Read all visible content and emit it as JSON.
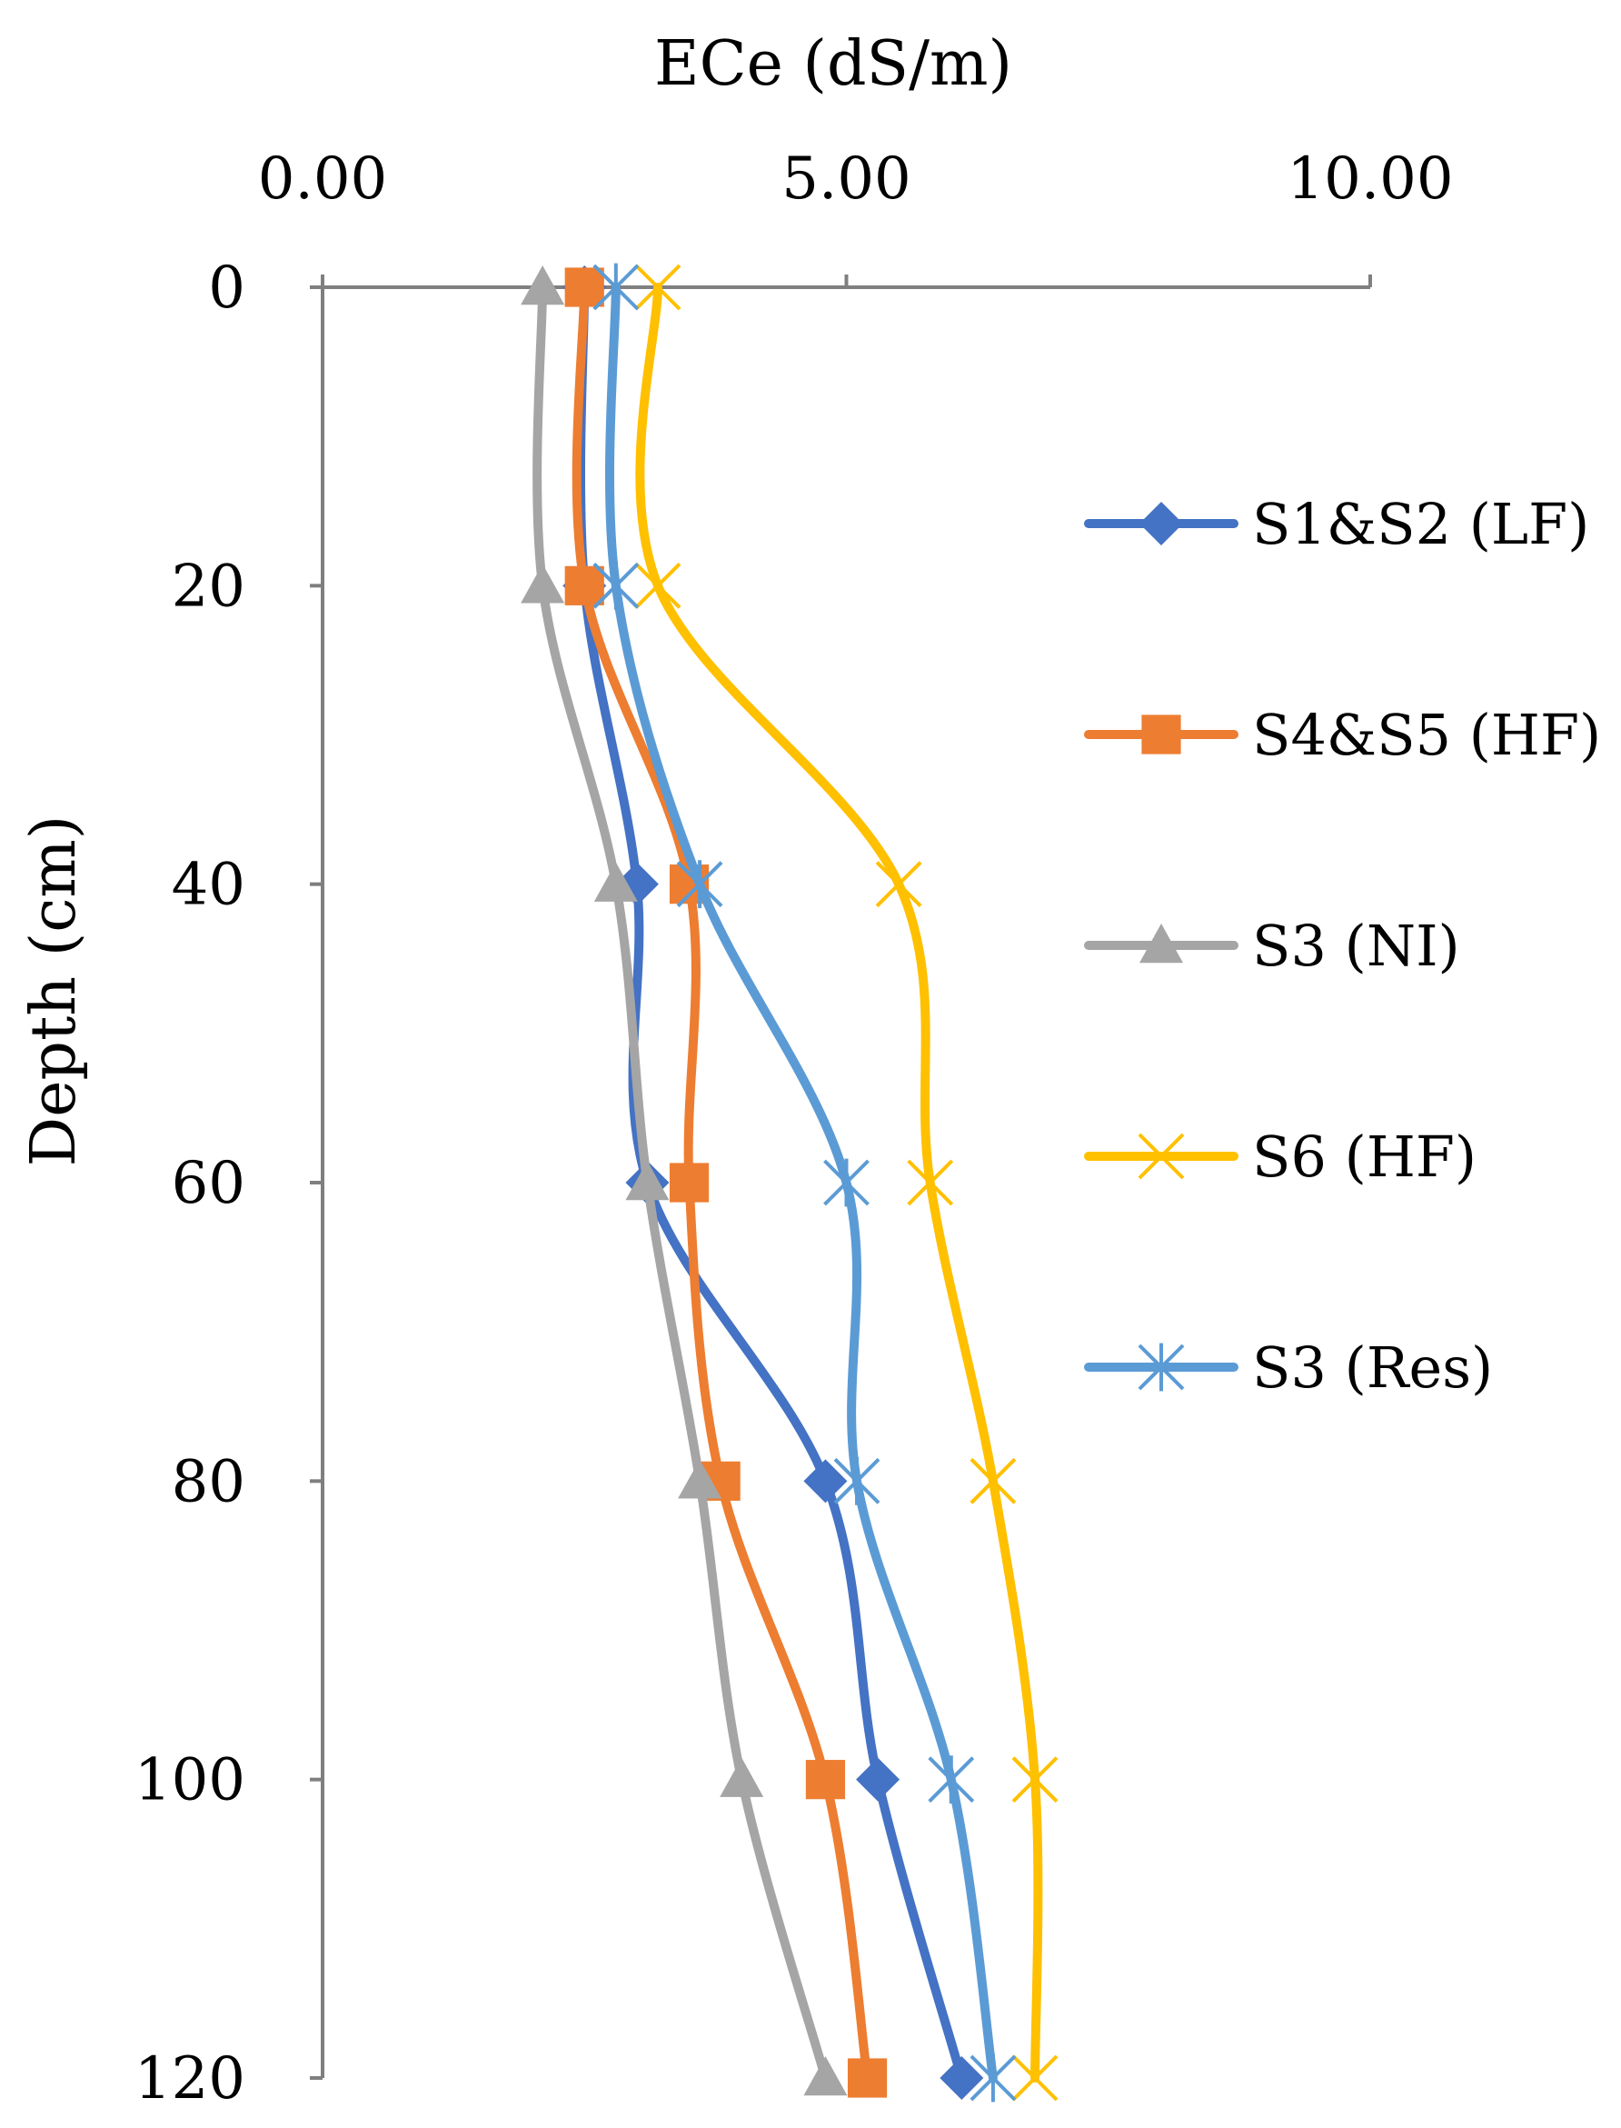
{
  "chart_data": {
    "type": "line",
    "title": "",
    "xlabel": "ECe (dS/m)",
    "ylabel": "Depth (cm)",
    "x_axis_position": "top",
    "y_axis_reversed": true,
    "xlim": [
      0,
      10
    ],
    "ylim": [
      0,
      120
    ],
    "x_ticks": [
      "0.00",
      "5.00",
      "10.00"
    ],
    "y_ticks": [
      "0",
      "20",
      "40",
      "60",
      "80",
      "100",
      "120"
    ],
    "grid": false,
    "smooth_lines": true,
    "legend_position": "right",
    "depth": [
      0,
      20,
      40,
      60,
      80,
      100,
      120
    ],
    "series": [
      {
        "name": "S1&S2 (LF)",
        "color": "#4472C4",
        "marker": "diamond",
        "values": [
          2.5,
          2.5,
          3.0,
          3.1,
          4.8,
          5.3,
          6.1
        ]
      },
      {
        "name": "S4&S5 (HF)",
        "color": "#ED7D31",
        "marker": "square",
        "values": [
          2.5,
          2.5,
          3.5,
          3.5,
          3.8,
          4.8,
          5.2
        ]
      },
      {
        "name": "S3 (NI)",
        "color": "#A5A5A5",
        "marker": "triangle",
        "values": [
          2.1,
          2.1,
          2.8,
          3.1,
          3.6,
          4.0,
          4.8
        ]
      },
      {
        "name": "S6 (HF)",
        "color": "#FFC000",
        "marker": "x",
        "values": [
          3.2,
          3.2,
          5.5,
          5.8,
          6.4,
          6.8,
          6.8
        ]
      },
      {
        "name": "S3 (Res)",
        "color": "#5B9BD5",
        "marker": "star",
        "values": [
          2.8,
          2.8,
          3.6,
          5.0,
          5.1,
          6.0,
          6.4
        ]
      }
    ]
  }
}
